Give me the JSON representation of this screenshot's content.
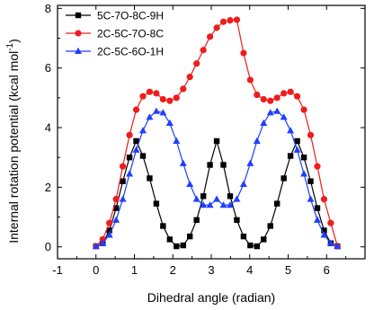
{
  "chart_data": {
    "type": "line",
    "xlabel": "Dihedral angle (radian)",
    "ylabel": "Internal rotation potential (kcal mol",
    "ylabel_sup": "-1",
    "ylabel_close": ")",
    "xlim": [
      -1,
      7
    ],
    "ylim": [
      -0.4,
      8.1
    ],
    "xticks": [
      -1,
      0,
      1,
      2,
      3,
      4,
      5,
      6
    ],
    "xtick_labels": [
      "-1",
      "0",
      "1",
      "2",
      "3",
      "4",
      "5",
      "6"
    ],
    "yticks": [
      0,
      2,
      4,
      6,
      8
    ],
    "ytick_labels": [
      "0",
      "2",
      "4",
      "6",
      "8"
    ],
    "legend_position": "top-left",
    "x": [
      0,
      0.175,
      0.349,
      0.524,
      0.698,
      0.873,
      1.047,
      1.222,
      1.396,
      1.571,
      1.745,
      1.92,
      2.094,
      2.269,
      2.443,
      2.618,
      2.793,
      2.967,
      3.142,
      3.316,
      3.491,
      3.665,
      3.84,
      4.014,
      4.189,
      4.363,
      4.538,
      4.712,
      4.887,
      5.061,
      5.236,
      5.411,
      5.585,
      5.76,
      5.934,
      6.109,
      6.283
    ],
    "series": [
      {
        "name": "5C-7O-8C-9H",
        "color": "#000000",
        "marker": "square",
        "values": [
          0.02,
          0.12,
          0.55,
          1.3,
          2.2,
          3.0,
          3.55,
          3.05,
          2.3,
          1.45,
          0.7,
          0.25,
          0.02,
          0.05,
          0.35,
          0.9,
          1.7,
          2.75,
          3.55,
          2.75,
          1.7,
          0.9,
          0.35,
          0.05,
          0.02,
          0.25,
          0.7,
          1.45,
          2.3,
          3.05,
          3.55,
          3.0,
          2.2,
          1.3,
          0.55,
          0.12,
          0.02
        ]
      },
      {
        "name": "2C-5C-7O-8C",
        "color": "#ee1c1c",
        "marker": "circle",
        "values": [
          0.02,
          0.25,
          0.8,
          1.6,
          2.7,
          3.75,
          4.6,
          5.05,
          5.2,
          5.15,
          4.95,
          4.9,
          5.0,
          5.3,
          5.7,
          6.15,
          6.6,
          7.05,
          7.35,
          7.55,
          7.6,
          7.62,
          6.5,
          5.6,
          5.1,
          4.95,
          4.9,
          5.0,
          5.15,
          5.2,
          5.05,
          4.6,
          3.75,
          2.7,
          1.6,
          0.8,
          0.02
        ]
      },
      {
        "name": "2C-5C-6O-1H",
        "color": "#1f3fff",
        "marker": "triangle",
        "values": [
          0.02,
          0.12,
          0.4,
          0.9,
          1.6,
          2.45,
          3.25,
          3.9,
          4.35,
          4.55,
          4.5,
          4.15,
          3.55,
          2.8,
          2.1,
          1.6,
          1.4,
          1.4,
          1.6,
          1.4,
          1.4,
          1.6,
          2.1,
          2.8,
          3.55,
          4.15,
          4.5,
          4.55,
          4.35,
          3.9,
          3.25,
          2.45,
          1.6,
          0.9,
          0.4,
          0.12,
          0.02
        ]
      }
    ]
  }
}
